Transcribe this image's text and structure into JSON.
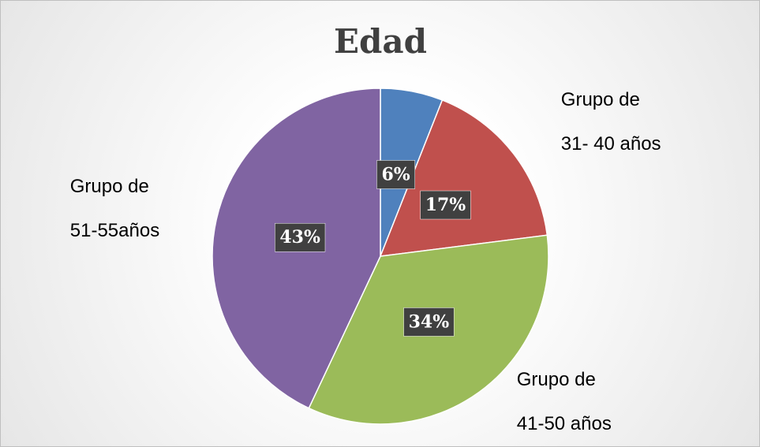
{
  "chart_data": {
    "type": "pie",
    "title": "Edad",
    "categories": [
      null,
      "Grupo de\n31- 40 años",
      "Grupo de\n41-50 años",
      "Grupo de\n51-55años"
    ],
    "values": [
      6,
      17,
      34,
      43
    ],
    "value_labels": [
      "6%",
      "17%",
      "34%",
      "43%"
    ],
    "colors": [
      "#4f81bd",
      "#c0504d",
      "#9bbb59",
      "#8064a2"
    ]
  }
}
